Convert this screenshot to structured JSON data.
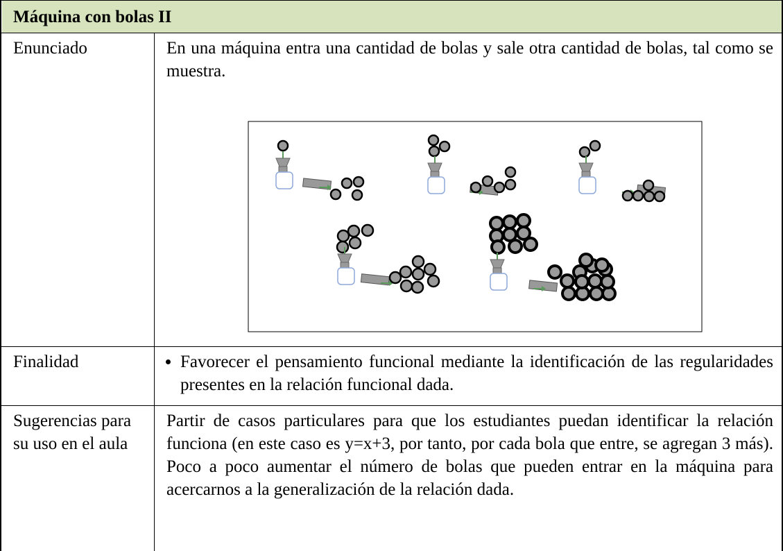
{
  "title": "Máquina con bolas II",
  "rows": [
    {
      "label": "Enunciado",
      "text": "En una máquina entra una cantidad de bolas y sale otra cantidad de bolas, tal como se muestra."
    },
    {
      "label": "Finalidad",
      "items": [
        "Favorecer el pensamiento funcional mediante la identificación de las regularidades presentes en la relación funcional dada."
      ]
    },
    {
      "label": "Sugerencias para su uso en el aula",
      "text": "Partir de casos particulares para que los estudiantes puedan identificar la relación funciona (en este caso es y=x+3, por tanto, por cada bola que entre, se agregan 3 más). Poco a poco aumentar el número de bolas que pueden entrar en la máquina para acercarnos a la generalización de la relación dada."
    }
  ]
}
